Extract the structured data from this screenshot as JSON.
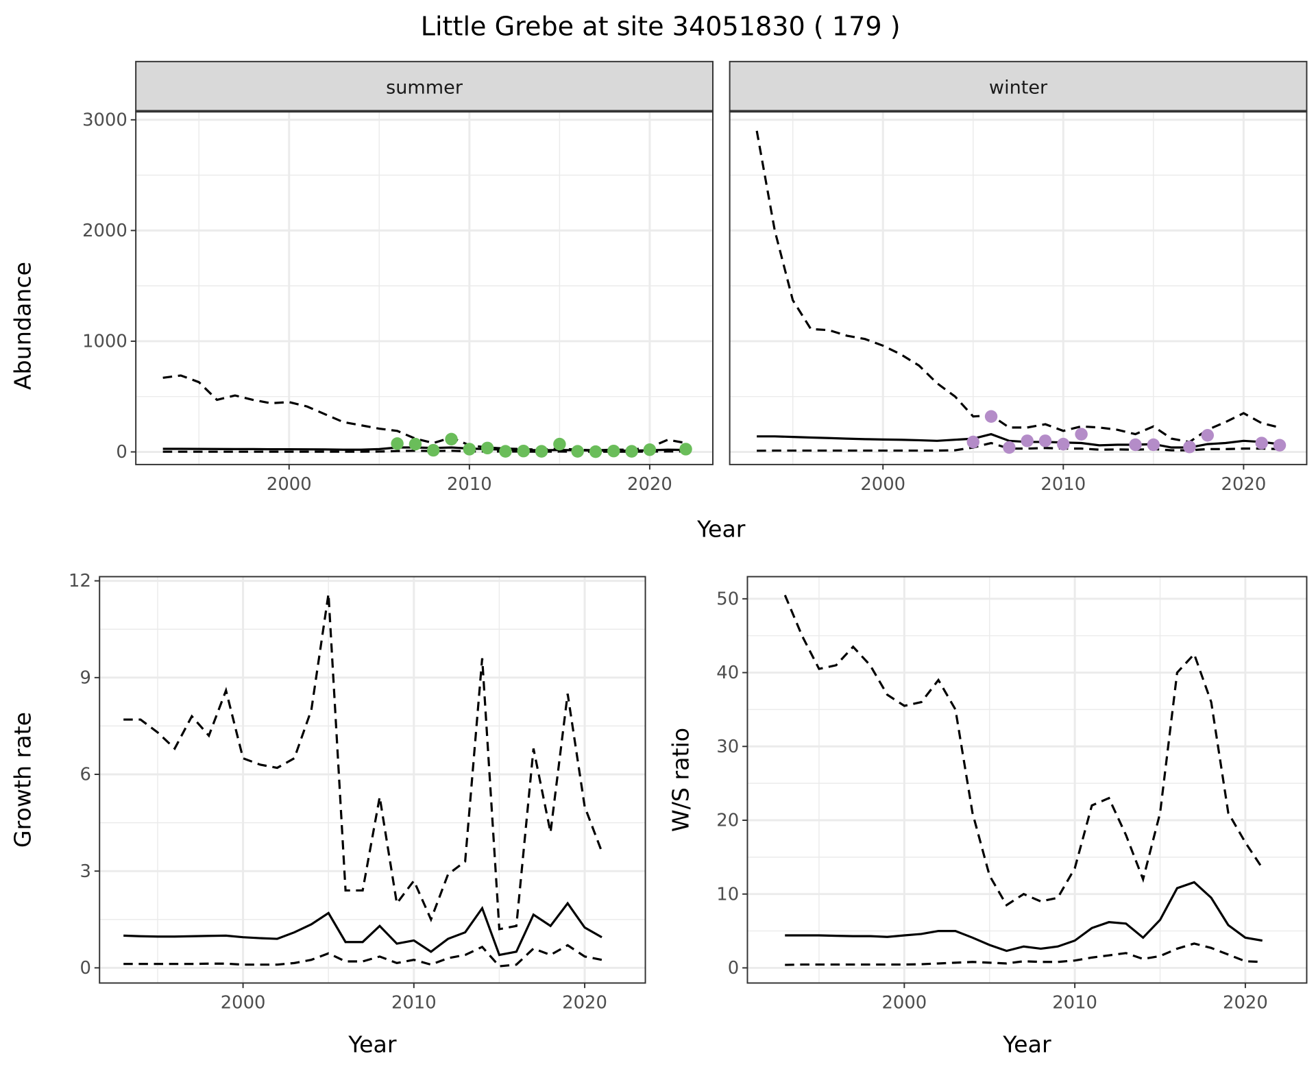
{
  "title": "Little Grebe at site 34051830 ( 179 )",
  "colors": {
    "summer_points": "#6abd5a",
    "winter_points": "#b48cc8",
    "line": "#000000",
    "strip_bg": "#d9d9d9",
    "grid": "#ebebeb"
  },
  "chart_data": [
    {
      "type": "line",
      "facet": "summer",
      "strip_label": "summer",
      "xlabel": "Year",
      "ylabel": "Abundance",
      "xlim": [
        1991.5,
        2023.5
      ],
      "ylim": [
        -114,
        3077
      ],
      "xticks": [
        2000,
        2010,
        2020
      ],
      "yticks": [
        0,
        1000,
        2000,
        3000
      ],
      "x": [
        1993,
        1994,
        1995,
        1996,
        1997,
        1998,
        1999,
        2000,
        2001,
        2002,
        2003,
        2004,
        2005,
        2006,
        2007,
        2008,
        2009,
        2010,
        2011,
        2012,
        2013,
        2014,
        2015,
        2016,
        2017,
        2018,
        2019,
        2020,
        2021,
        2022
      ],
      "series": [
        {
          "name": "upper",
          "style": "dashed",
          "values": [
            670,
            690,
            630,
            470,
            510,
            470,
            440,
            450,
            410,
            340,
            270,
            240,
            210,
            190,
            120,
            80,
            130,
            60,
            40,
            30,
            25,
            20,
            30,
            20,
            15,
            20,
            20,
            40,
            110,
            80
          ]
        },
        {
          "name": "mean",
          "style": "solid",
          "values": [
            28,
            28,
            27,
            26,
            25,
            25,
            24,
            24,
            23,
            22,
            20,
            20,
            25,
            40,
            40,
            35,
            40,
            30,
            25,
            20,
            18,
            15,
            18,
            15,
            12,
            12,
            12,
            15,
            20,
            18
          ]
        },
        {
          "name": "lower",
          "style": "dashed",
          "values": [
            2,
            2,
            2,
            2,
            2,
            2,
            2,
            2,
            2,
            2,
            2,
            2,
            3,
            8,
            10,
            8,
            10,
            5,
            4,
            3,
            3,
            2,
            3,
            2,
            2,
            2,
            2,
            3,
            4,
            4
          ]
        }
      ],
      "points": {
        "x": [
          2006,
          2007,
          2008,
          2009,
          2010,
          2011,
          2012,
          2013,
          2014,
          2015,
          2016,
          2017,
          2018,
          2019,
          2020,
          2022
        ],
        "y": [
          75,
          70,
          15,
          115,
          25,
          35,
          5,
          8,
          5,
          70,
          5,
          2,
          8,
          5,
          20,
          25
        ]
      }
    },
    {
      "type": "line",
      "facet": "winter",
      "strip_label": "winter",
      "xlabel": "Year",
      "ylabel": "Abundance",
      "xlim": [
        1991.5,
        2023.5
      ],
      "ylim": [
        -114,
        3077
      ],
      "xticks": [
        2000,
        2010,
        2020
      ],
      "yticks": [
        0,
        1000,
        2000,
        3000
      ],
      "x": [
        1993,
        1994,
        1995,
        1996,
        1997,
        1998,
        1999,
        2000,
        2001,
        2002,
        2003,
        2004,
        2005,
        2006,
        2007,
        2008,
        2009,
        2010,
        2011,
        2012,
        2013,
        2014,
        2015,
        2016,
        2017,
        2018,
        2019,
        2020,
        2021,
        2022
      ],
      "series": [
        {
          "name": "upper",
          "style": "dashed",
          "values": [
            2900,
            2000,
            1370,
            1110,
            1100,
            1050,
            1020,
            960,
            880,
            780,
            620,
            500,
            320,
            330,
            220,
            220,
            250,
            190,
            230,
            220,
            200,
            160,
            230,
            120,
            90,
            200,
            270,
            350,
            260,
            220
          ]
        },
        {
          "name": "mean",
          "style": "solid",
          "values": [
            140,
            140,
            135,
            130,
            125,
            120,
            115,
            112,
            110,
            105,
            100,
            110,
            120,
            160,
            100,
            90,
            90,
            85,
            80,
            60,
            65,
            65,
            70,
            40,
            40,
            70,
            80,
            100,
            90,
            70
          ]
        },
        {
          "name": "lower",
          "style": "dashed",
          "values": [
            10,
            12,
            12,
            12,
            12,
            12,
            12,
            12,
            12,
            12,
            12,
            15,
            40,
            80,
            30,
            30,
            35,
            30,
            30,
            20,
            22,
            20,
            25,
            15,
            15,
            25,
            25,
            30,
            30,
            25
          ]
        }
      ],
      "points": {
        "x": [
          2005,
          2006,
          2007,
          2008,
          2009,
          2010,
          2011,
          2014,
          2015,
          2017,
          2018,
          2021,
          2022
        ],
        "y": [
          90,
          320,
          40,
          100,
          100,
          70,
          160,
          65,
          65,
          45,
          150,
          80,
          60
        ]
      }
    },
    {
      "type": "line",
      "xlabel": "Year",
      "ylabel": "Growth rate",
      "xlim": [
        1991.6,
        2023.55
      ],
      "ylim": [
        -0.47,
        12.13
      ],
      "xticks": [
        2000,
        2010,
        2020
      ],
      "yticks": [
        0,
        3,
        6,
        9,
        12
      ],
      "x": [
        1993,
        1994,
        1995,
        1996,
        1997,
        1998,
        1999,
        2000,
        2001,
        2002,
        2003,
        2004,
        2005,
        2006,
        2007,
        2008,
        2009,
        2010,
        2011,
        2012,
        2013,
        2014,
        2015,
        2016,
        2017,
        2018,
        2019,
        2020,
        2021
      ],
      "series": [
        {
          "name": "upper",
          "style": "dashed",
          "values": [
            7.7,
            7.7,
            7.3,
            6.8,
            7.8,
            7.2,
            8.6,
            6.5,
            6.3,
            6.2,
            6.5,
            8.0,
            11.6,
            2.4,
            2.4,
            5.3,
            2.0,
            2.7,
            1.5,
            2.9,
            3.3,
            9.6,
            1.2,
            1.3,
            6.8,
            4.2,
            8.5,
            5.0,
            3.6
          ]
        },
        {
          "name": "mean",
          "style": "solid",
          "values": [
            1.0,
            0.98,
            0.97,
            0.97,
            0.98,
            0.99,
            1.0,
            0.95,
            0.92,
            0.9,
            1.1,
            1.35,
            1.7,
            0.8,
            0.8,
            1.3,
            0.75,
            0.85,
            0.5,
            0.9,
            1.1,
            1.85,
            0.4,
            0.5,
            1.65,
            1.3,
            2.0,
            1.25,
            0.95
          ]
        },
        {
          "name": "lower",
          "style": "dashed",
          "values": [
            0.12,
            0.12,
            0.12,
            0.12,
            0.12,
            0.13,
            0.13,
            0.1,
            0.1,
            0.1,
            0.15,
            0.25,
            0.45,
            0.2,
            0.2,
            0.35,
            0.15,
            0.25,
            0.1,
            0.3,
            0.4,
            0.65,
            0.05,
            0.1,
            0.6,
            0.4,
            0.7,
            0.35,
            0.25
          ]
        }
      ]
    },
    {
      "type": "line",
      "xlabel": "Year",
      "ylabel": "W/S ratio",
      "xlim": [
        1990.8,
        2023.6
      ],
      "ylim": [
        -2.05,
        53
      ],
      "xticks": [
        2000,
        2010,
        2020
      ],
      "yticks": [
        0,
        10,
        20,
        30,
        40,
        50
      ],
      "x": [
        1993,
        1994,
        1995,
        1996,
        1997,
        1998,
        1999,
        2000,
        2001,
        2002,
        2003,
        2004,
        2005,
        2006,
        2007,
        2008,
        2009,
        2010,
        2011,
        2012,
        2013,
        2014,
        2015,
        2016,
        2017,
        2018,
        2019,
        2020,
        2021
      ],
      "series": [
        {
          "name": "upper",
          "style": "dashed",
          "values": [
            50.5,
            45,
            40.5,
            41,
            43.5,
            41,
            37,
            35.5,
            36,
            39,
            35,
            21,
            12.5,
            8.5,
            10,
            9,
            9.5,
            13.5,
            22,
            23,
            18,
            12,
            21,
            40,
            42.5,
            36,
            21,
            17,
            13.5
          ]
        },
        {
          "name": "mean",
          "style": "solid",
          "values": [
            4.4,
            4.4,
            4.4,
            4.35,
            4.3,
            4.3,
            4.2,
            4.4,
            4.6,
            5.0,
            5.0,
            4.1,
            3.1,
            2.3,
            2.9,
            2.6,
            2.9,
            3.7,
            5.4,
            6.2,
            6.0,
            4.1,
            6.5,
            10.8,
            11.6,
            9.5,
            5.8,
            4.1,
            3.7
          ]
        },
        {
          "name": "lower",
          "style": "dashed",
          "values": [
            0.4,
            0.45,
            0.45,
            0.45,
            0.45,
            0.45,
            0.45,
            0.45,
            0.5,
            0.6,
            0.7,
            0.8,
            0.7,
            0.6,
            0.9,
            0.8,
            0.8,
            1.0,
            1.4,
            1.7,
            2.0,
            1.2,
            1.6,
            2.6,
            3.3,
            2.7,
            1.8,
            0.9,
            0.8
          ]
        }
      ]
    }
  ]
}
